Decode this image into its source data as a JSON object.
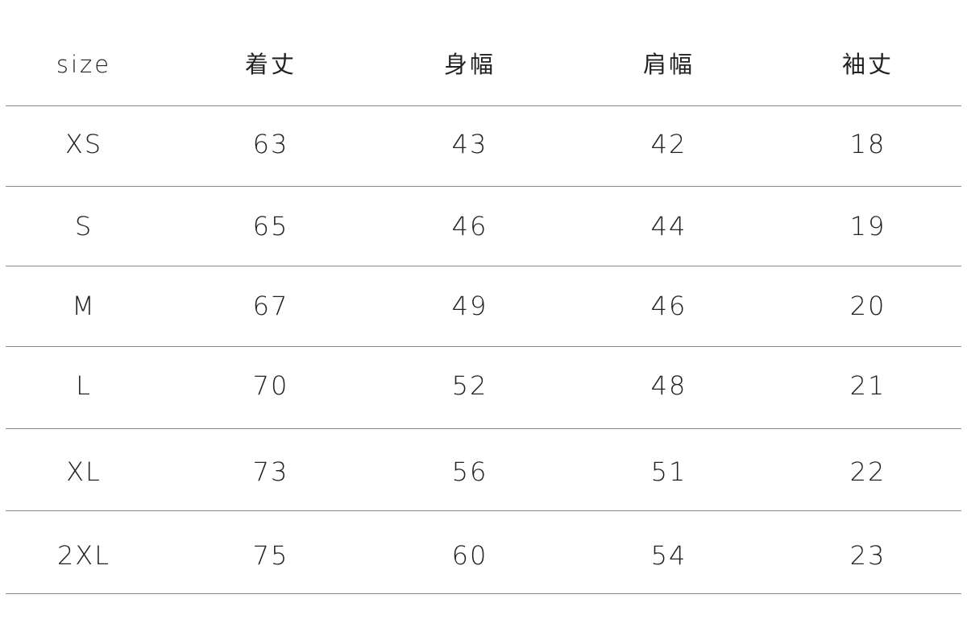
{
  "table": {
    "headers": [
      "size",
      "着丈",
      "身幅",
      "肩幅",
      "袖丈"
    ],
    "rows": [
      [
        "XS",
        "63",
        "43",
        "42",
        "18"
      ],
      [
        "S",
        "65",
        "46",
        "44",
        "19"
      ],
      [
        "M",
        "67",
        "49",
        "46",
        "20"
      ],
      [
        "L",
        "70",
        "52",
        "48",
        "21"
      ],
      [
        "XL",
        "73",
        "56",
        "51",
        "22"
      ],
      [
        "2XL",
        "75",
        "60",
        "54",
        "23"
      ]
    ]
  },
  "colors": {
    "text": "#222222",
    "divider": "#8a8a8a",
    "background": "#ffffff"
  }
}
